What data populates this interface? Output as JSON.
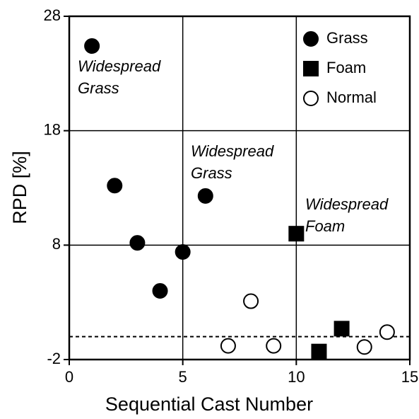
{
  "chart_data": {
    "type": "scatter",
    "xlabel": "Sequential Cast Number",
    "ylabel": "RPD [%]",
    "xlim": [
      0,
      15
    ],
    "xticks": [
      0,
      5,
      10,
      15
    ],
    "ylim": [
      -2,
      28
    ],
    "yticks": [
      -2,
      8,
      18,
      28
    ],
    "grid": true,
    "legend": "upper right",
    "hline": 0,
    "series": [
      {
        "name": "Grass",
        "marker": "circle",
        "color": "#000000",
        "filled": true,
        "x": [
          1,
          2,
          3,
          4,
          5,
          6
        ],
        "values": [
          25.4,
          13.2,
          8.2,
          4.0,
          7.4,
          12.3
        ]
      },
      {
        "name": "Foam",
        "marker": "square",
        "color": "#000000",
        "filled": true,
        "x": [
          10,
          11,
          12
        ],
        "values": [
          9.0,
          -1.3,
          0.7
        ]
      },
      {
        "name": "Normal",
        "marker": "circle",
        "color": "#000000",
        "filled": false,
        "x": [
          7,
          8,
          9,
          13,
          14
        ],
        "values": [
          -0.8,
          3.1,
          -0.8,
          -0.9,
          0.4
        ]
      }
    ],
    "annotations": [
      {
        "lines": [
          "Widespread",
          "Grass"
        ]
      },
      {
        "lines": [
          "Widespread",
          "Grass"
        ]
      },
      {
        "lines": [
          "Widespread",
          "Foam"
        ]
      }
    ]
  }
}
